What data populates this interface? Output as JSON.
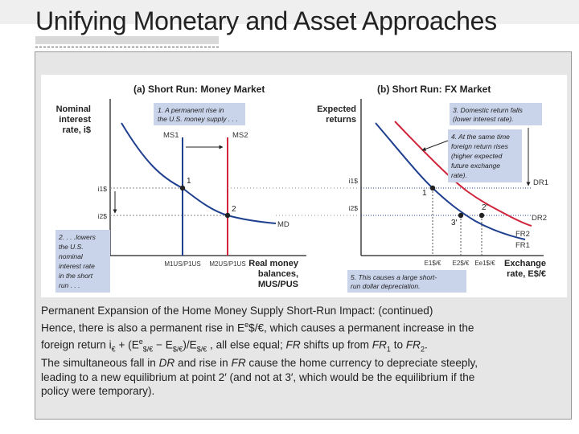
{
  "slide": {
    "title": "Unifying Monetary and Asset Approaches"
  },
  "figure": {
    "panel_a": {
      "title": "(a) Short Run: Money Market",
      "y_axis_label": [
        "Nominal",
        "interest",
        "rate, i$"
      ],
      "x_axis_label": [
        "Real money",
        "balances,",
        "MUS/PUS"
      ],
      "curves": {
        "ms1": "MS1",
        "ms2": "MS2",
        "md": "MD"
      },
      "points": {
        "p1": "1",
        "p2": "2"
      },
      "y_ticks": {
        "i1": "i1$",
        "i2": "i2$"
      },
      "x_ticks": {
        "m1": "M1US/P1US",
        "m2": "M2US/P1US"
      },
      "note1": [
        "1. A permanent rise in",
        "the U.S. money supply . . ."
      ],
      "note2": [
        "2. . . .lowers",
        "the U.S.",
        "nominal",
        "interest rate",
        "in the short",
        "run . . ."
      ]
    },
    "panel_b": {
      "title": "(b) Short Run: FX Market",
      "y_axis_label": [
        "Expected",
        "returns"
      ],
      "x_axis_label": [
        "Exchange",
        "rate, E$/€"
      ],
      "curves": {
        "dr1": "DR1",
        "dr2": "DR2",
        "fr1": "FR1",
        "fr2": "FR2"
      },
      "points": {
        "p1": "1",
        "p2": "2′",
        "p3": "3′"
      },
      "y_ticks": {
        "i1": "i1$",
        "i2": "i2$"
      },
      "x_ticks": {
        "e1": "E1$/€",
        "e2": "E2$/€",
        "ee": "Ee1$/€"
      },
      "note3": [
        "3. Domestic return falls",
        "(lower interest rate)."
      ],
      "note4": [
        "4. At the same time",
        "foreign return rises",
        "(higher expected",
        "future exchange",
        "rate)."
      ],
      "note5": [
        "5. This causes a large short-",
        "run dollar depreciation."
      ]
    },
    "colors": {
      "blue": "#1f3f8f",
      "red": "#d0253c",
      "note_bg": "#c9d3ea"
    }
  },
  "caption": {
    "line1": "Permanent Expansion of the Home Money Supply Short-Run Impact: (continued)",
    "line2a": "Hence, there is also a permanent rise in E",
    "line2b": "e",
    "line2c": "$/€, which causes a permanent increase in the",
    "line3a": "foreign return i",
    "line3b": "€",
    "line3c": " + (E",
    "line3d": "e",
    "line3e": "$/€",
    "line3f": " − E",
    "line3g": "$/€",
    "line3h": ")/E",
    "line3i": "$/€",
    "line3j": " , all else equal; ",
    "line3k": "FR",
    "line3l": " shifts up from ",
    "line3m": "FR",
    "line3n": "1",
    "line3o": " to ",
    "line3p": "FR",
    "line3q": "2",
    "line3r": ".",
    "line4a": "The simultaneous fall in ",
    "line4b": "DR",
    "line4c": " and rise in ",
    "line4d": "FR",
    "line4e": " cause the home currency to depreciate steeply,",
    "line5": "leading to a new equilibrium at point 2′ (and not at 3′, which would be the equilibrium if the",
    "line6": "policy were temporary)."
  }
}
